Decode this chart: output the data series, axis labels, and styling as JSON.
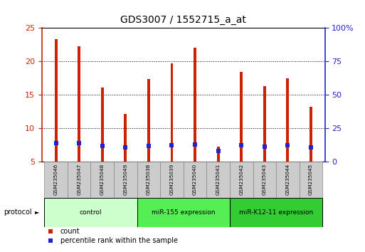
{
  "title": "GDS3007 / 1552715_a_at",
  "samples": [
    "GSM235046",
    "GSM235047",
    "GSM235048",
    "GSM235049",
    "GSM235038",
    "GSM235039",
    "GSM235040",
    "GSM235041",
    "GSM235042",
    "GSM235043",
    "GSM235044",
    "GSM235045"
  ],
  "count_values": [
    23.3,
    22.2,
    16.0,
    12.1,
    17.3,
    19.7,
    22.0,
    7.2,
    18.4,
    16.2,
    17.4,
    13.2
  ],
  "percentile_values": [
    13.7,
    13.5,
    11.6,
    10.5,
    11.3,
    11.9,
    12.6,
    7.5,
    11.9,
    11.2,
    12.2,
    10.5
  ],
  "ylim_left": [
    5,
    25
  ],
  "ylim_right": [
    0,
    100
  ],
  "yticks_left": [
    5,
    10,
    15,
    20,
    25
  ],
  "yticks_right": [
    0,
    25,
    50,
    75,
    100
  ],
  "ytick_labels_right": [
    "0",
    "25",
    "50",
    "75",
    "100%"
  ],
  "bar_color": "#cc2200",
  "percentile_color": "#2222cc",
  "bar_width": 0.12,
  "groups": [
    {
      "label": "control",
      "start": 0,
      "end": 4,
      "color": "#ccffcc"
    },
    {
      "label": "miR-155 expression",
      "start": 4,
      "end": 8,
      "color": "#55ee55"
    },
    {
      "label": "miR-K12-11 expression",
      "start": 8,
      "end": 12,
      "color": "#33cc33"
    }
  ],
  "protocol_label": "protocol",
  "legend_count_label": "count",
  "legend_percentile_label": "percentile rank within the sample",
  "title_fontsize": 10,
  "axis_label_color_left": "#cc2200",
  "axis_label_color_right": "#2222cc",
  "sample_box_color": "#cccccc",
  "sample_box_border": "#888888"
}
